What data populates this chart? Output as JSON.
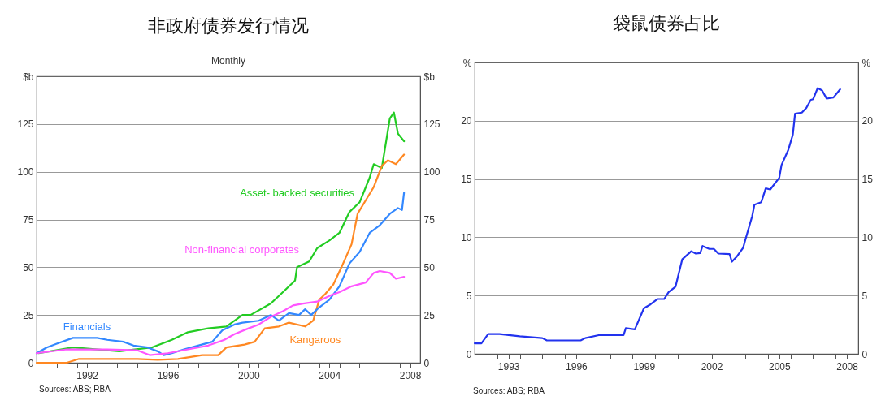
{
  "chart_data": [
    {
      "type": "line",
      "title": "非政府债券发行情况",
      "subtitle": "Monthly",
      "ylabel": "$b",
      "y2label": "$b",
      "annotations": [
        "Sources: ABS; RBA"
      ],
      "grid": "y",
      "xlim": [
        1990,
        2009
      ],
      "xticks": [
        {
          "value": 1991,
          "label": null
        },
        {
          "value": 1992,
          "label": null
        },
        {
          "value": 1992.5,
          "label": "1992"
        },
        {
          "value": 1993,
          "label": null
        },
        {
          "value": 1994,
          "label": null
        },
        {
          "value": 1995,
          "label": null
        },
        {
          "value": 1996,
          "label": null
        },
        {
          "value": 1996.5,
          "label": "1996"
        },
        {
          "value": 1997,
          "label": null
        },
        {
          "value": 1998,
          "label": null
        },
        {
          "value": 1999,
          "label": null
        },
        {
          "value": 2000,
          "label": null
        },
        {
          "value": 2000.5,
          "label": "2000"
        },
        {
          "value": 2001,
          "label": null
        },
        {
          "value": 2002,
          "label": null
        },
        {
          "value": 2003,
          "label": null
        },
        {
          "value": 2004,
          "label": null
        },
        {
          "value": 2004.5,
          "label": "2004"
        },
        {
          "value": 2005,
          "label": null
        },
        {
          "value": 2006,
          "label": null
        },
        {
          "value": 2007,
          "label": null
        },
        {
          "value": 2008,
          "label": null
        },
        {
          "value": 2008.5,
          "label": "2008"
        }
      ],
      "ylim": [
        0,
        150
      ],
      "yticks": [
        0,
        25,
        50,
        75,
        100,
        125
      ],
      "y2lim": [
        0,
        150
      ],
      "y2ticks": [
        0,
        25,
        50,
        75,
        100,
        125
      ],
      "series": [
        {
          "name": "Asset- backed securities",
          "color": "#22cc22",
          "x": [
            1990.1,
            1991.8,
            1994.1,
            1995.7,
            1996.7,
            1997.5,
            1998.5,
            1999.4,
            2000.2,
            2000.6,
            2001.6,
            2002.2,
            2002.8,
            2002.9,
            2003.5,
            2003.9,
            2004.5,
            2005.0,
            2005.5,
            2006.0,
            2006.5,
            2006.7,
            2007.1,
            2007.5,
            2007.7,
            2007.9,
            2008.2
          ],
          "values": [
            5,
            8,
            6,
            8,
            12,
            16,
            18,
            19,
            25,
            25,
            31,
            37,
            43,
            50,
            53,
            60,
            64,
            68,
            79,
            84,
            97,
            104,
            102,
            128,
            131,
            120,
            116
          ]
        },
        {
          "name": "Kangaroos",
          "color": "#ff8822",
          "x": [
            1990.0,
            1991.5,
            1992.1,
            1995.0,
            1996.0,
            1997.0,
            1998.2,
            1999.0,
            1999.4,
            2000.3,
            2000.8,
            2001.3,
            2002.0,
            2002.5,
            2003.3,
            2003.7,
            2004.0,
            2004.3,
            2004.7,
            2005.1,
            2005.6,
            2005.9,
            2006.3,
            2006.7,
            2007.1,
            2007.4,
            2007.8,
            2008.2
          ],
          "values": [
            0,
            0,
            2,
            2,
            1.5,
            2,
            4,
            4,
            8,
            9.5,
            11,
            18,
            19,
            21,
            19,
            22,
            33,
            36,
            41,
            50,
            62,
            78,
            85,
            92,
            103,
            106,
            104,
            109
          ]
        },
        {
          "name": "Financials",
          "color": "#3388ff",
          "x": [
            1990.0,
            1990.5,
            1991.0,
            1991.8,
            1993.0,
            1993.5,
            1994.3,
            1994.8,
            1995.5,
            1996.0,
            1996.3,
            1996.7,
            1997.3,
            1998.0,
            1998.7,
            1999.2,
            1999.8,
            2000.2,
            2001.0,
            2001.6,
            2002.0,
            2002.5,
            2003.0,
            2003.3,
            2003.6,
            2004.0,
            2004.5,
            2005.0,
            2005.5,
            2006.0,
            2006.5,
            2007.0,
            2007.5,
            2007.9,
            2008.1,
            2008.2
          ],
          "values": [
            5,
            8,
            10,
            13,
            13,
            12,
            11,
            9,
            8,
            6,
            4,
            5,
            7,
            9,
            11,
            17,
            20,
            21,
            22,
            25,
            22,
            26,
            25,
            28,
            25,
            29,
            33,
            40,
            52,
            58,
            68,
            72,
            78,
            81,
            80,
            89
          ]
        },
        {
          "name": "Non-financial corporates",
          "color": "#ff55ff",
          "x": [
            1990.0,
            1991.5,
            1993.5,
            1995.0,
            1995.6,
            1996.5,
            1997.5,
            1998.5,
            1999.3,
            1999.8,
            2000.5,
            2001.0,
            2001.6,
            2002.2,
            2002.7,
            2003.2,
            2003.9,
            2004.5,
            2005.0,
            2005.6,
            2006.3,
            2006.7,
            2007.0,
            2007.5,
            2007.8,
            2008.2
          ],
          "values": [
            5,
            7,
            7,
            6.5,
            4,
            5,
            7,
            9,
            12,
            15,
            18,
            20,
            24,
            27,
            30,
            31,
            32,
            35,
            37,
            40,
            42,
            47,
            48,
            47,
            44,
            45
          ]
        }
      ]
    },
    {
      "type": "line",
      "title": "袋鼠债券占比",
      "ylabel": "%",
      "y2label": "%",
      "annotations": [
        "Sources: ABS; RBA"
      ],
      "grid": "y",
      "xlim": [
        1992,
        2009
      ],
      "xticks": [
        {
          "value": 1993,
          "label": null
        },
        {
          "value": 1993.5,
          "label": "1993"
        },
        {
          "value": 1994,
          "label": null
        },
        {
          "value": 1995,
          "label": null
        },
        {
          "value": 1996,
          "label": null
        },
        {
          "value": 1996.5,
          "label": "1996"
        },
        {
          "value": 1997,
          "label": null
        },
        {
          "value": 1998,
          "label": null
        },
        {
          "value": 1999,
          "label": null
        },
        {
          "value": 1999.5,
          "label": "1999"
        },
        {
          "value": 2000,
          "label": null
        },
        {
          "value": 2001,
          "label": null
        },
        {
          "value": 2002,
          "label": null
        },
        {
          "value": 2002.5,
          "label": "2002"
        },
        {
          "value": 2003,
          "label": null
        },
        {
          "value": 2004,
          "label": null
        },
        {
          "value": 2005,
          "label": null
        },
        {
          "value": 2005.5,
          "label": "2005"
        },
        {
          "value": 2006,
          "label": null
        },
        {
          "value": 2007,
          "label": null
        },
        {
          "value": 2008,
          "label": null
        },
        {
          "value": 2008.5,
          "label": "2008"
        }
      ],
      "ylim": [
        0,
        25
      ],
      "yticks": [
        0,
        5,
        10,
        15,
        20
      ],
      "y2lim": [
        0,
        25
      ],
      "y2ticks": [
        0,
        5,
        10,
        15,
        20
      ],
      "series": [
        {
          "color": "#2233ee",
          "x": [
            1992.0,
            1992.3,
            1992.6,
            1993.1,
            1994.0,
            1995.0,
            1995.2,
            1996.7,
            1996.9,
            1997.5,
            1998.6,
            1998.7,
            1999.1,
            1999.5,
            1999.8,
            2000.1,
            2000.4,
            2000.6,
            2000.9,
            2001.2,
            2001.6,
            2001.8,
            2002.0,
            2002.1,
            2002.4,
            2002.6,
            2002.8,
            2003.3,
            2003.4,
            2003.6,
            2003.9,
            2004.0,
            2004.3,
            2004.4,
            2004.7,
            2004.9,
            2005.1,
            2005.5,
            2005.6,
            2005.9,
            2006.1,
            2006.2,
            2006.5,
            2006.7,
            2006.9,
            2007.0,
            2007.2,
            2007.4,
            2007.6,
            2007.9,
            2008.2
          ],
          "values": [
            0.9,
            0.9,
            1.7,
            1.7,
            1.5,
            1.35,
            1.15,
            1.15,
            1.35,
            1.6,
            1.6,
            2.2,
            2.1,
            3.9,
            4.25,
            4.7,
            4.7,
            5.3,
            5.75,
            8.1,
            8.8,
            8.6,
            8.65,
            9.25,
            9.0,
            9.0,
            8.6,
            8.55,
            7.9,
            8.3,
            9.1,
            9.8,
            11.8,
            12.8,
            13.0,
            14.2,
            14.1,
            15.1,
            16.2,
            17.5,
            18.8,
            20.6,
            20.7,
            21.1,
            21.8,
            21.85,
            22.8,
            22.6,
            21.9,
            22.0,
            22.7
          ]
        }
      ]
    }
  ]
}
